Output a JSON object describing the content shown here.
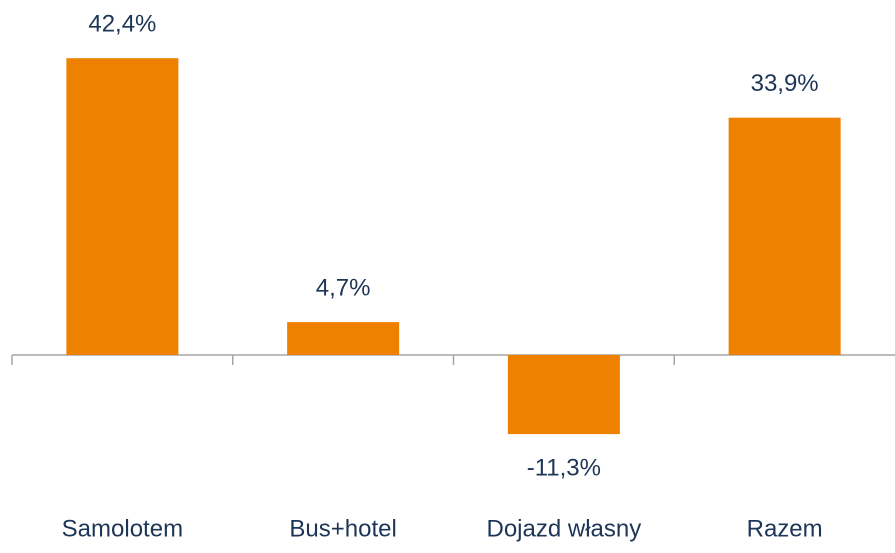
{
  "chart_data": {
    "type": "bar",
    "categories": [
      "Samolotem",
      "Bus+hotel",
      "Dojazd własny",
      "Razem"
    ],
    "values": [
      42.4,
      4.7,
      -11.3,
      33.9
    ],
    "value_labels": [
      "42,4%",
      "4,7%",
      "-11,3%",
      "33,9%"
    ],
    "color": "#ee8100"
  }
}
